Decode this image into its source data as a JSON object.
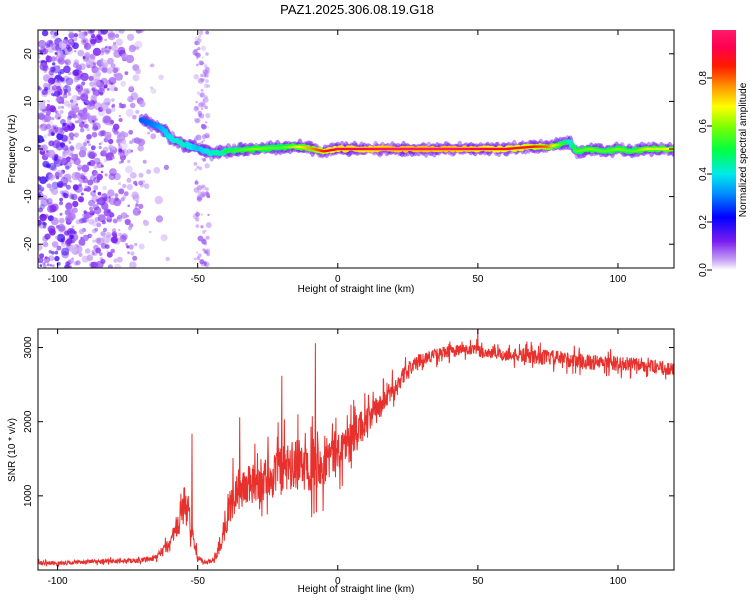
{
  "figure_title": "PAZ1.2025.306.08.19.G18",
  "colors": {
    "snr_line": "#e8302c",
    "spectro_dot": "#9966ff",
    "ridge": "#ff2a55",
    "axis": "#000000"
  },
  "chart_data": [
    {
      "type": "heatmap",
      "title": "PAZ1.2025.306.08.19.G18",
      "xlabel": "Height of straight line (km)",
      "ylabel": "Frequency (Hz)",
      "xlim": [
        -107,
        120
      ],
      "ylim": [
        -25,
        25
      ],
      "x_ticks": [
        -100,
        -50,
        0,
        50,
        100
      ],
      "x_tick_labels": [
        "-100",
        "-50",
        "0",
        "50",
        "100"
      ],
      "y_ticks": [
        -20,
        -10,
        0,
        10,
        20
      ],
      "y_tick_labels": [
        "-20",
        "-10",
        "0",
        "10",
        "20"
      ],
      "grid": false,
      "colorbar": {
        "label": "Normalized spectral amplitude",
        "range": [
          0,
          1
        ],
        "ticks": [
          0.0,
          0.2,
          0.4,
          0.6,
          0.8
        ],
        "tick_labels": [
          "0.0",
          "0.2",
          "0.4",
          "0.6",
          "0.8"
        ],
        "colormap": "hsv-rainbow (violet→blue→cyan→green→yellow→red→magenta)"
      },
      "ridge": {
        "description": "dominant frequency ridge",
        "x": [
          -70,
          -65,
          -62,
          -60,
          -57,
          -55,
          -52,
          -50,
          -47,
          -45,
          -40,
          -30,
          -20,
          -15,
          -10,
          -5,
          0,
          10,
          20,
          30,
          40,
          50,
          60,
          70,
          75,
          80,
          83,
          85,
          90,
          95,
          100,
          105,
          110,
          115,
          120
        ],
        "freq": [
          6.0,
          5.0,
          4.0,
          2.5,
          1.5,
          1.0,
          0.5,
          0.0,
          -0.5,
          -1.0,
          -0.5,
          0.0,
          0.3,
          0.5,
          0.2,
          -0.5,
          0.0,
          0.0,
          0.0,
          0.0,
          0.0,
          0.0,
          0.0,
          0.5,
          0.5,
          1.0,
          1.5,
          -0.5,
          0.0,
          -0.5,
          0.0,
          -0.5,
          0.0,
          0.0,
          0.0
        ],
        "amplitude": [
          0.15,
          0.2,
          0.3,
          0.35,
          0.4,
          0.4,
          0.35,
          0.3,
          0.35,
          0.4,
          0.45,
          0.55,
          0.5,
          0.6,
          0.7,
          0.8,
          0.9,
          0.9,
          0.95,
          0.95,
          0.95,
          0.9,
          0.85,
          0.8,
          0.75,
          0.5,
          0.4,
          0.5,
          0.55,
          0.5,
          0.55,
          0.5,
          0.6,
          0.6,
          0.65
        ],
        "noise_region_x": [
          -107,
          -60
        ],
        "secondary_noise_x": [
          -51,
          -46
        ]
      }
    },
    {
      "type": "line",
      "xlabel": "Height of straight line (km)",
      "ylabel": "SNR (10 * v/v)",
      "xlim": [
        -107,
        120
      ],
      "ylim": [
        0,
        3250
      ],
      "x_ticks": [
        -100,
        -50,
        0,
        50,
        100
      ],
      "x_tick_labels": [
        "-100",
        "-50",
        "0",
        "50",
        "100"
      ],
      "y_ticks": [
        1000,
        2000,
        3000
      ],
      "y_tick_labels": [
        "1000",
        "2000",
        "3000"
      ],
      "grid": false,
      "series": [
        {
          "name": "SNR",
          "x": [
            -107,
            -100,
            -90,
            -80,
            -70,
            -65,
            -60,
            -57,
            -55,
            -53,
            -50,
            -47,
            -45,
            -42,
            -40,
            -37,
            -35,
            -30,
            -25,
            -20,
            -15,
            -10,
            -5,
            0,
            5,
            10,
            15,
            20,
            25,
            30,
            35,
            40,
            45,
            50,
            55,
            60,
            70,
            80,
            90,
            100,
            110,
            120
          ],
          "y": [
            100,
            90,
            110,
            120,
            130,
            160,
            350,
            600,
            900,
            700,
            150,
            110,
            120,
            300,
            700,
            1000,
            1100,
            1150,
            1250,
            1350,
            1400,
            1450,
            1500,
            1600,
            1800,
            2000,
            2200,
            2450,
            2700,
            2850,
            2900,
            2950,
            2970,
            2950,
            2920,
            2900,
            2880,
            2850,
            2800,
            2780,
            2760,
            2700
          ],
          "noise_amplitude": [
            40,
            40,
            40,
            40,
            40,
            60,
            150,
            300,
            400,
            300,
            50,
            40,
            40,
            150,
            350,
            400,
            400,
            400,
            450,
            500,
            500,
            550,
            500,
            400,
            350,
            300,
            250,
            200,
            150,
            120,
            120,
            120,
            120,
            120,
            120,
            120,
            150,
            150,
            150,
            150,
            130,
            120
          ],
          "notable_peaks": [
            {
              "x": -52,
              "y": 1840
            },
            {
              "x": -35,
              "y": 2060
            },
            {
              "x": -20,
              "y": 2620
            },
            {
              "x": -8,
              "y": 3060
            },
            {
              "x": 50,
              "y": 3250
            }
          ]
        }
      ]
    }
  ]
}
